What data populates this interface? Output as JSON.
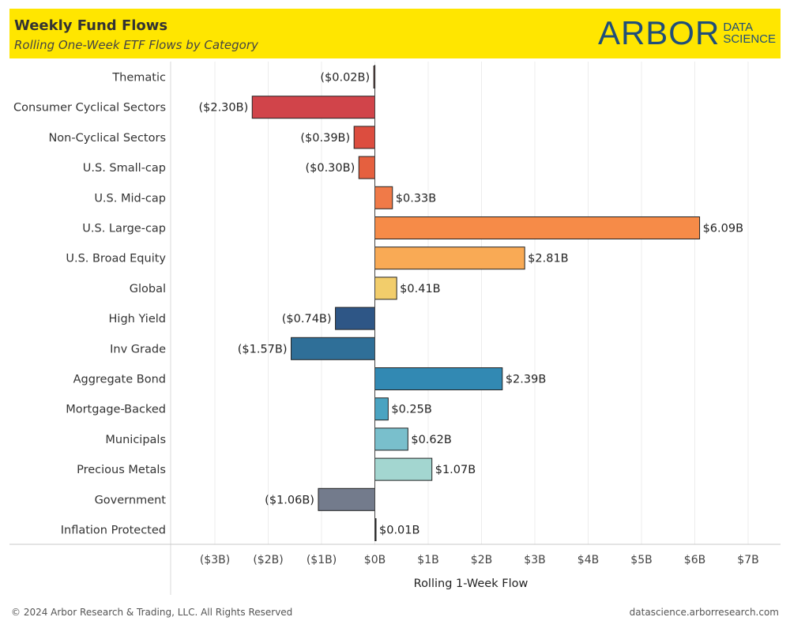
{
  "header": {
    "title": "Weekly Fund Flows",
    "subtitle": "Rolling One-Week ETF Flows by Category",
    "logo_main": "ARBOR",
    "logo_sub_1": "DATA",
    "logo_sub_2": "SCIENCE",
    "background": "#FFE600"
  },
  "footer": {
    "copyright": "© 2024 Arbor Research & Trading, LLC. All Rights Reserved",
    "site": "datascience.arborresearch.com"
  },
  "chart_data": {
    "type": "bar",
    "orientation": "horizontal",
    "xlabel": "Rolling 1-Week Flow",
    "xlim": [
      -3.8,
      7.5
    ],
    "grid": "vertical",
    "categories": [
      "Thematic",
      "Consumer Cyclical Sectors",
      "Non-Cyclical Sectors",
      "U.S. Small-cap",
      "U.S. Mid-cap",
      "U.S. Large-cap",
      "U.S. Broad Equity",
      "Global",
      "High Yield",
      "Inv Grade",
      "Aggregate Bond",
      "Mortgage-Backed",
      "Municipals",
      "Precious Metals",
      "Government",
      "Inflation Protected"
    ],
    "values": [
      -0.02,
      -2.3,
      -0.39,
      -0.3,
      0.33,
      6.09,
      2.81,
      0.41,
      -0.74,
      -1.57,
      2.39,
      0.25,
      0.62,
      1.07,
      -1.06,
      0.01
    ],
    "data_labels": [
      "($0.02B)",
      "($2.30B)",
      "($0.39B)",
      "($0.30B)",
      "$0.33B",
      "$6.09B",
      "$2.81B",
      "$0.41B",
      "($0.74B)",
      "($1.57B)",
      "$2.39B",
      "$0.25B",
      "$0.62B",
      "$1.07B",
      "($1.06B)",
      "$0.01B"
    ],
    "colors": [
      "#7a3b2e",
      "#d1444a",
      "#dc4d3f",
      "#e5603f",
      "#f07a48",
      "#f68b48",
      "#f9aa55",
      "#f2cd6b",
      "#2e5686",
      "#2f6f98",
      "#3289b3",
      "#4aa3c1",
      "#79bfcc",
      "#a3d6d0",
      "#737b8c",
      "#333333"
    ],
    "ticks": [
      -3,
      -2,
      -1,
      0,
      1,
      2,
      3,
      4,
      5,
      6,
      7
    ],
    "tick_labels": [
      "($3B)",
      "($2B)",
      "($1B)",
      "$0B",
      "$1B",
      "$2B",
      "$3B",
      "$4B",
      "$5B",
      "$6B",
      "$7B"
    ]
  }
}
